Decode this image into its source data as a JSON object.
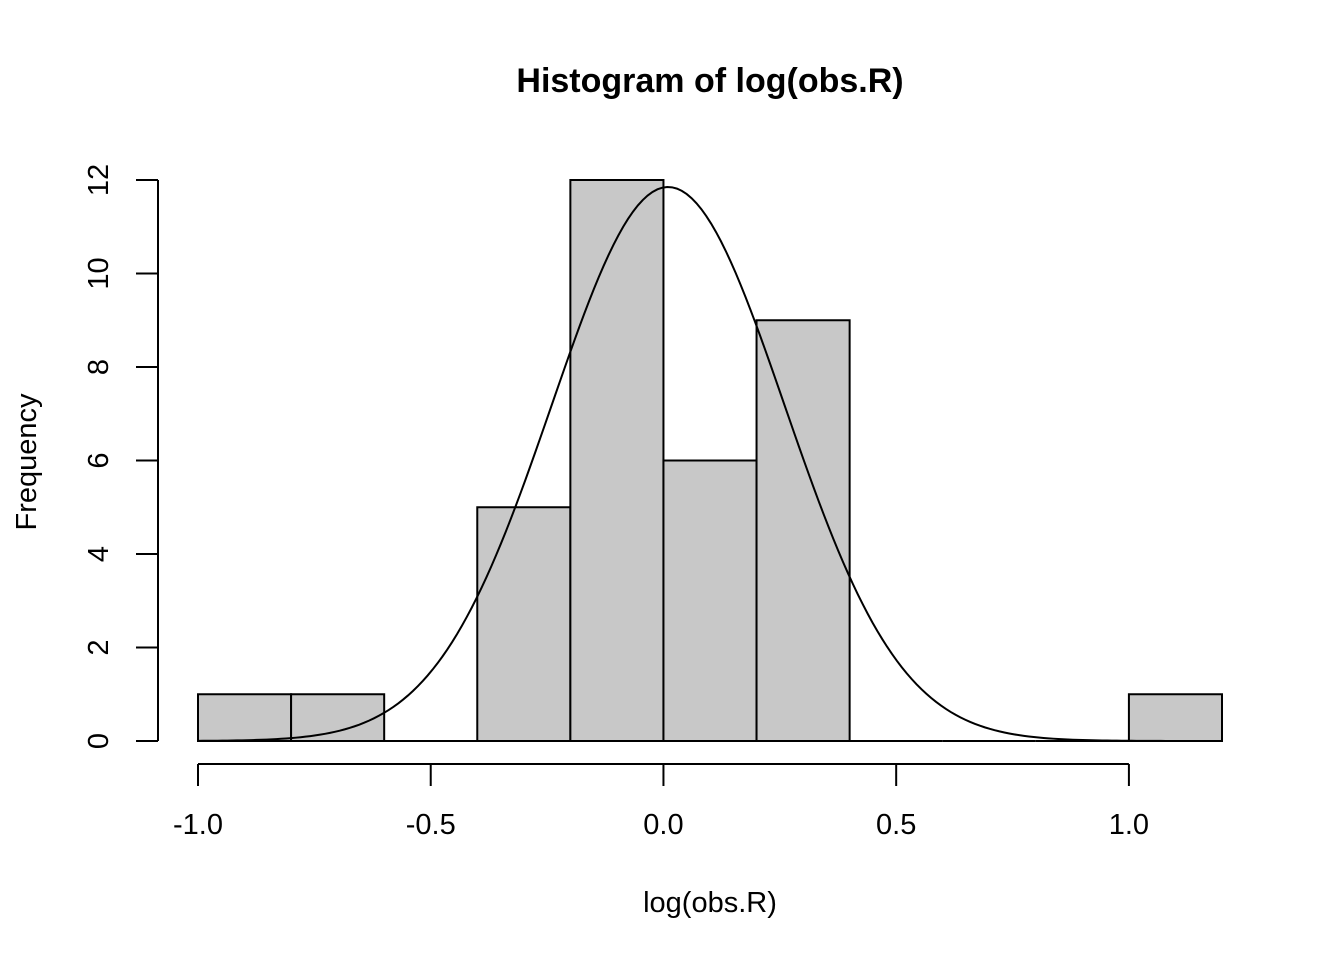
{
  "chart_data": {
    "type": "bar",
    "title": "Histogram of log(obs.R)",
    "xlabel": "log(obs.R)",
    "ylabel": "Frequency",
    "bins": [
      {
        "start": -1.0,
        "end": -0.8,
        "count": 1
      },
      {
        "start": -0.8,
        "end": -0.6,
        "count": 1
      },
      {
        "start": -0.6,
        "end": -0.4,
        "count": 0
      },
      {
        "start": -0.4,
        "end": -0.2,
        "count": 5
      },
      {
        "start": -0.2,
        "end": 0.0,
        "count": 12
      },
      {
        "start": 0.0,
        "end": 0.2,
        "count": 6
      },
      {
        "start": 0.2,
        "end": 0.4,
        "count": 9
      },
      {
        "start": 0.4,
        "end": 0.6,
        "count": 0
      },
      {
        "start": 0.6,
        "end": 0.8,
        "count": 0
      },
      {
        "start": 0.8,
        "end": 1.0,
        "count": 0
      },
      {
        "start": 1.0,
        "end": 1.2,
        "count": 1
      }
    ],
    "xlim": [
      -1.0,
      1.2
    ],
    "ylim": [
      0,
      12
    ],
    "x_ticks": [
      -1.0,
      -0.5,
      0.0,
      0.5,
      1.0
    ],
    "x_tick_labels": [
      "-1.0",
      "-0.5",
      "0.0",
      "0.5",
      "1.0"
    ],
    "y_ticks": [
      0,
      2,
      4,
      6,
      8,
      10,
      12
    ],
    "y_tick_labels": [
      "0",
      "2",
      "4",
      "6",
      "8",
      "10",
      "12"
    ],
    "overlay_curve": {
      "type": "normal-density",
      "mean": 0.01,
      "sd": 0.25,
      "peak": 11.85,
      "x_range": [
        -1.0,
        1.1
      ]
    },
    "grid": false,
    "legend": "none"
  }
}
